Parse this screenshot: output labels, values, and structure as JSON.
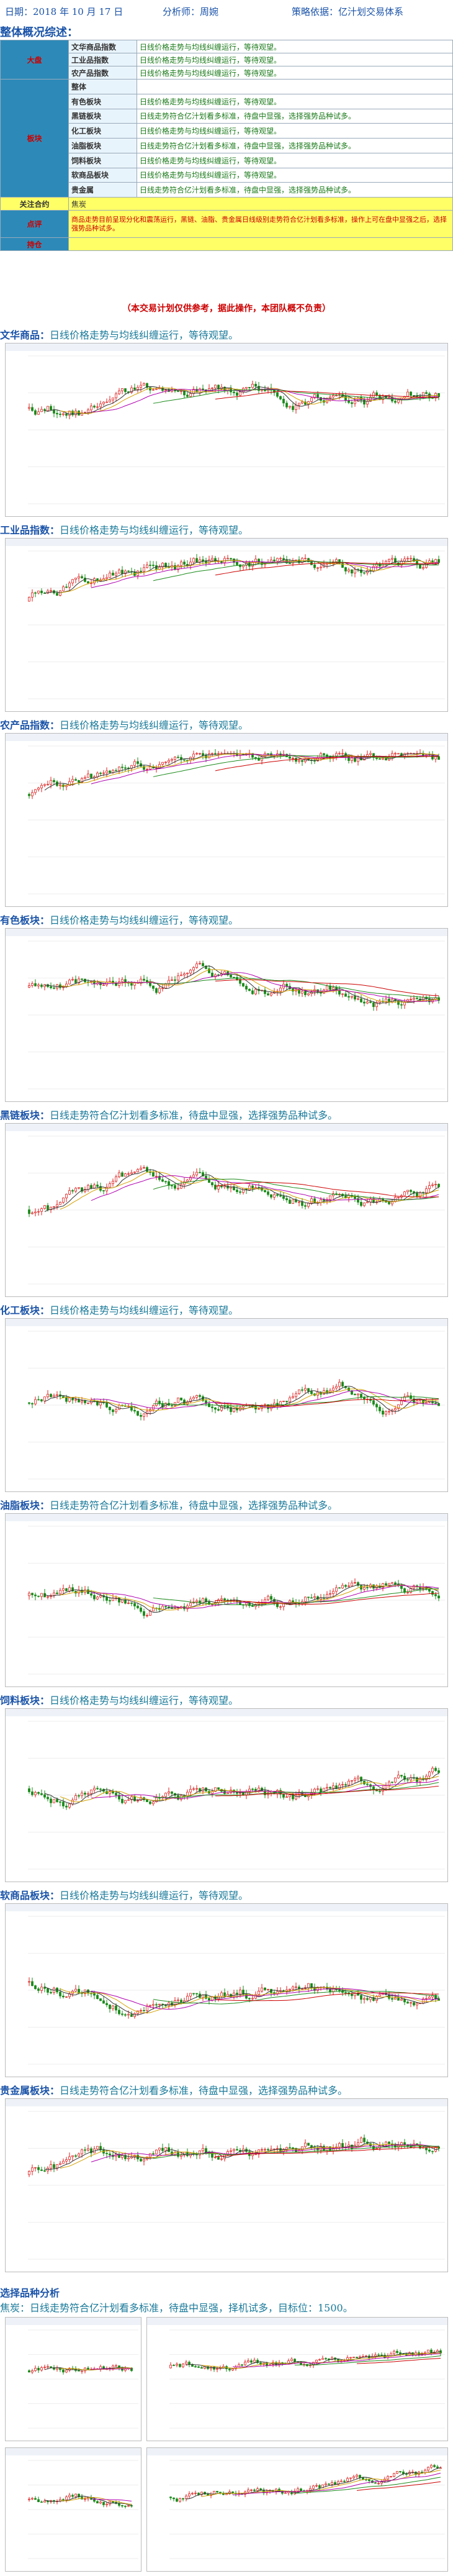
{
  "header": {
    "date": "日期：2018 年 10 月 17 日",
    "analyst": "分析师：周婉",
    "basis": "策略依据：亿汁划交易体系"
  },
  "overview": {
    "title": "整体概况综述：",
    "rows": [
      {
        "group": "大盘",
        "label": "文华商品指数",
        "text": "日线价格走势与均线纠缠运行，等待观望。"
      },
      {
        "group": "",
        "label": "工业品指数",
        "text": "日线价格走势与均线纠缠运行，等待观望。"
      },
      {
        "group": "",
        "label": "农产品指数",
        "text": "日线价格走势与均线纠缠运行，等待观望。"
      },
      {
        "group": "板块",
        "label": "整体",
        "text": ""
      },
      {
        "group": "",
        "label": "有色板块",
        "text": "日线价格走势与均线纠缠运行，等待观望。"
      },
      {
        "group": "",
        "label": "黑链板块",
        "text": "日线走势符合亿汁划看多标准，待盘中显强，选择强势品种试多。"
      },
      {
        "group": "",
        "label": "化工板块",
        "text": "日线价格走势与均线纠缠运行，等待观望。"
      },
      {
        "group": "",
        "label": "油脂板块",
        "text": "日线走势符合亿汁划看多标准，待盘中显强，选择强势品种试多。"
      },
      {
        "group": "",
        "label": "饲料板块",
        "text": "日线价格走势与均线纠缠运行，等待观望。"
      },
      {
        "group": "",
        "label": "软商品板块",
        "text": "日线价格走势与均线纠缠运行，等待观望。"
      },
      {
        "group": "",
        "label": "贵金属",
        "text": "日线走势符合亿汁划看多标准，待盘中显强，选择强势品种试多。"
      }
    ],
    "focus_label": "关注合约",
    "focus_value": "焦炭",
    "comment_label": "点评",
    "comment_text": "商品走势目前呈现分化和震荡运行，黑链、油脂、贵金属日线级别走势符合亿汁划看多标准，操作上可在盘中显强之后，选择强势品种试多。",
    "hold_label": "持仓",
    "hold_value": ""
  },
  "disclaimer": "（本交易计划仅供参考，据此操作，本团队概不负责）",
  "sections": [
    {
      "name": "文华商品：",
      "desc": "日线价格走势与均线纠缠运行，等待观望。"
    },
    {
      "name": "工业品指数：",
      "desc": "日线价格走势与均线纠缠运行，等待观望。"
    },
    {
      "name": "农产品指数：",
      "desc": "日线价格走势与均线纠缠运行，等待观望。"
    },
    {
      "name": "有色板块：",
      "desc": "日线价格走势与均线纠缠运行，等待观望。"
    },
    {
      "name": "黑链板块：",
      "desc": "日线走势符合亿汁划看多标准，待盘中显强，选择强势品种试多。"
    },
    {
      "name": "化工板块：",
      "desc": "日线价格走势与均线纠缠运行，等待观望。"
    },
    {
      "name": "油脂板块：",
      "desc": "日线走势符合亿汁划看多标准，待盘中显强，选择强势品种试多。"
    },
    {
      "name": "饲料板块：",
      "desc": "日线价格走势与均线纠缠运行，等待观望。"
    },
    {
      "name": "软商品板块：",
      "desc": "日线价格走势与均线纠缠运行，等待观望。"
    },
    {
      "name": "贵金属板块：",
      "desc": "日线走势符合亿汁划看多标准，待盘中显强，选择强势品种试多。"
    }
  ],
  "pick": {
    "title": "选择品种分析",
    "desc": "焦炭：日线走势符合亿汁划看多标准，待盘中显强，择机试多，目标位：1500。"
  },
  "colors": {
    "up": "#d22",
    "down": "#1a8a1a",
    "ma1": "#333",
    "ma2": "#d4a000",
    "ma3": "#b000b0",
    "ma4": "#1a8a1a",
    "ma5": "#c00"
  }
}
